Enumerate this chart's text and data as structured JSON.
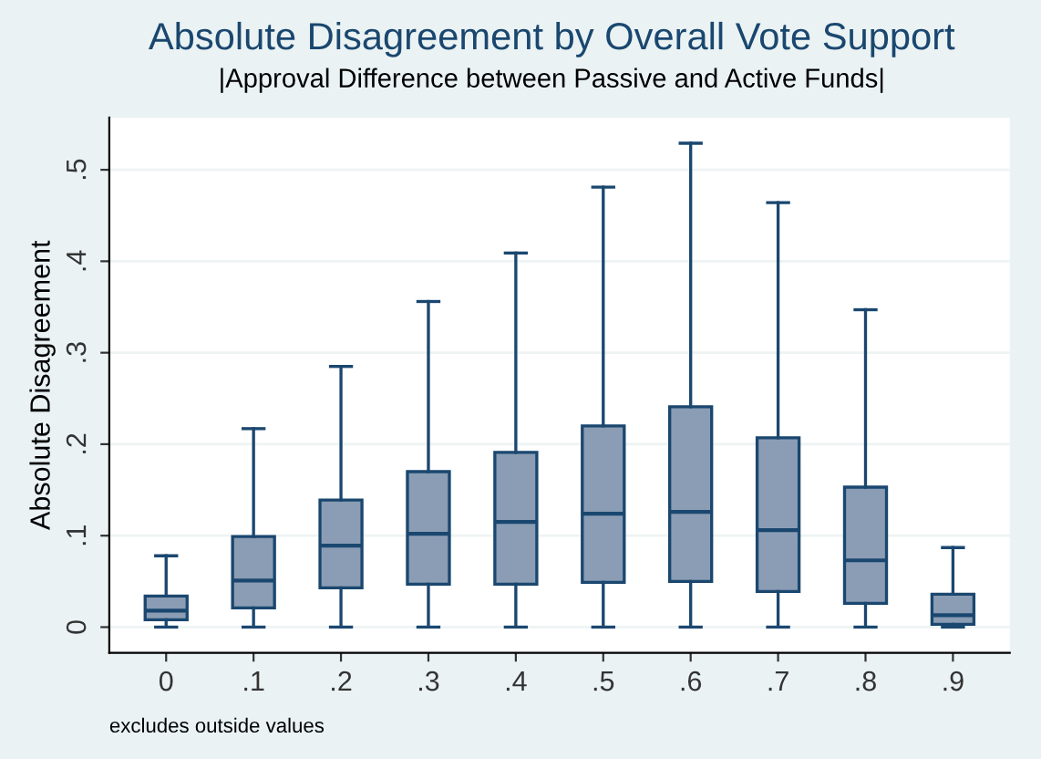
{
  "chart_data": {
    "type": "box",
    "title": "Absolute Disagreement by Overall Vote Support",
    "subtitle": "|Approval Difference between Passive and Active Funds|",
    "ylabel": "Absolute Disagreement",
    "annotations": [
      "excludes outside values"
    ],
    "categories": [
      "0",
      ".1",
      ".2",
      ".3",
      ".4",
      ".5",
      ".6",
      ".7",
      ".8",
      ".9"
    ],
    "color": "#8a9db5",
    "boxes": [
      {
        "low": 0,
        "q1": 0.008,
        "median": 0.018,
        "q3": 0.034,
        "high": 0.078
      },
      {
        "low": 0,
        "q1": 0.021,
        "median": 0.051,
        "q3": 0.099,
        "high": 0.217
      },
      {
        "low": 0,
        "q1": 0.043,
        "median": 0.089,
        "q3": 0.139,
        "high": 0.285
      },
      {
        "low": 0,
        "q1": 0.047,
        "median": 0.102,
        "q3": 0.17,
        "high": 0.356
      },
      {
        "low": 0,
        "q1": 0.047,
        "median": 0.115,
        "q3": 0.191,
        "high": 0.409
      },
      {
        "low": 0,
        "q1": 0.049,
        "median": 0.124,
        "q3": 0.22,
        "high": 0.481
      },
      {
        "low": 0,
        "q1": 0.05,
        "median": 0.126,
        "q3": 0.241,
        "high": 0.529
      },
      {
        "low": 0,
        "q1": 0.039,
        "median": 0.106,
        "q3": 0.207,
        "high": 0.464
      },
      {
        "low": 0,
        "q1": 0.026,
        "median": 0.073,
        "q3": 0.153,
        "high": 0.347
      },
      {
        "low": 0,
        "q1": 0.003,
        "median": 0.013,
        "q3": 0.036,
        "high": 0.087
      }
    ],
    "ylim": [
      -0.028,
      0.557
    ],
    "yticks": [
      0,
      {
        "value": 0.1,
        "label": ".1"
      },
      {
        "value": 0.2,
        "label": ".2"
      },
      {
        "value": 0.3,
        "label": ".3"
      },
      {
        "value": 0.4,
        "label": ".4"
      },
      {
        "value": 0.5,
        "label": ".5"
      }
    ],
    "grid": "y",
    "legend": false
  }
}
